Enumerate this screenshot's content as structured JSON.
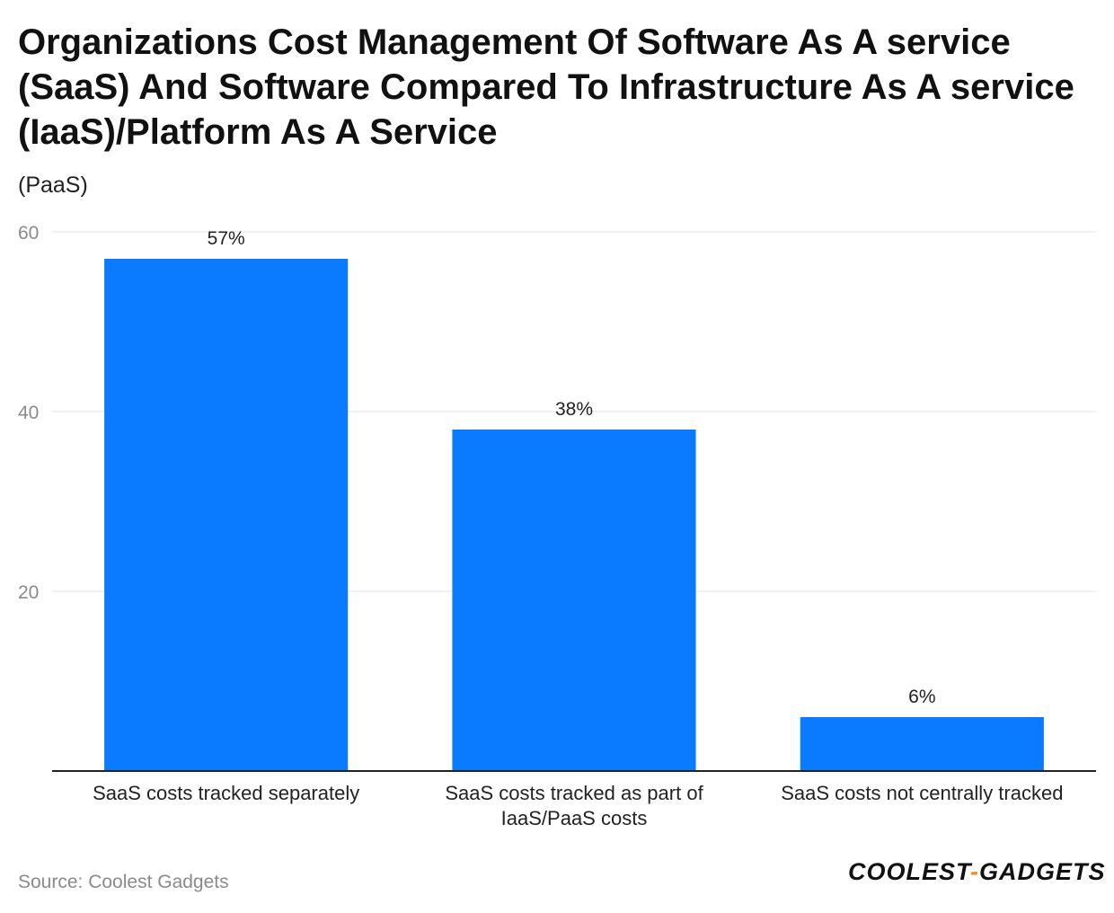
{
  "chart_data": {
    "type": "bar",
    "title": "Organizations Cost Management Of Software As A service (SaaS) And Software Compared To Infrastructure As A service (IaaS)/Platform As A Service",
    "subtitle": "(PaaS)",
    "categories": [
      [
        "SaaS costs tracked separately"
      ],
      [
        "SaaS costs tracked as part of",
        "IaaS/PaaS costs"
      ],
      [
        "SaaS costs not centrally tracked"
      ]
    ],
    "values": [
      57,
      38,
      6
    ],
    "data_labels": [
      "57%",
      "38%",
      "6%"
    ],
    "yticks": [
      20,
      40,
      60
    ],
    "ylim": [
      0,
      60
    ],
    "xlabel": "",
    "ylabel": "",
    "grid": true,
    "bar_color": "#0A7BFF"
  },
  "footer": {
    "source": "Source: Coolest Gadgets",
    "logo_left": "COOLEST",
    "logo_dash": "-",
    "logo_right": "GADGETS"
  }
}
